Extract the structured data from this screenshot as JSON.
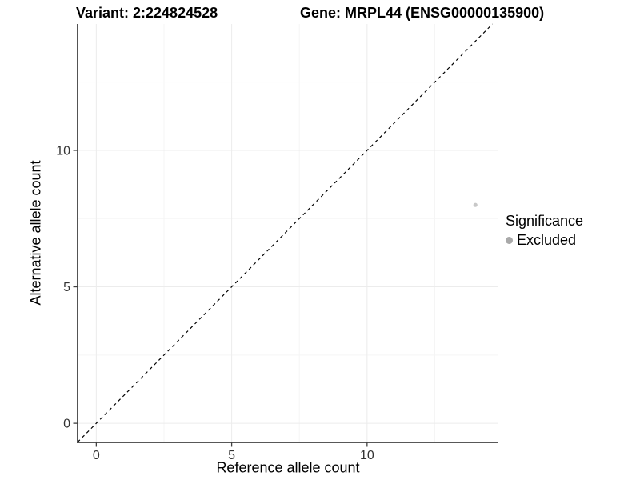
{
  "chart_data": {
    "type": "scatter",
    "title_left": "Variant: 2:224824528",
    "title_right": "Gene: MRPL44 (ENSG00000135900)",
    "xlabel": "Reference allele count",
    "ylabel": "Alternative allele count",
    "xlim": [
      -0.69,
      14.82
    ],
    "ylim": [
      -0.7,
      14.63
    ],
    "x_ticks": [
      0,
      5,
      10
    ],
    "y_ticks": [
      0,
      5,
      10
    ],
    "x_minor_gridlines": [
      2.5,
      7.5,
      12.5
    ],
    "y_minor_gridlines": [
      2.5,
      7.5,
      12.5
    ],
    "grid": true,
    "points": [
      {
        "x": 14,
        "y": 8,
        "significance": "Excluded",
        "color": "#c8c8c8"
      }
    ],
    "reference_line": {
      "kind": "identity y=x",
      "style": "dashed",
      "color": "#000000"
    },
    "legend": {
      "title": "Significance",
      "position": "right-center",
      "items": [
        {
          "label": "Excluded",
          "color": "#a9a9a9"
        }
      ]
    },
    "colors": {
      "background": "#ffffff",
      "axis_line": "#404040",
      "tick_label": "#333333",
      "grid_major": "#ececec",
      "grid_minor": "#f5f5f5"
    }
  }
}
